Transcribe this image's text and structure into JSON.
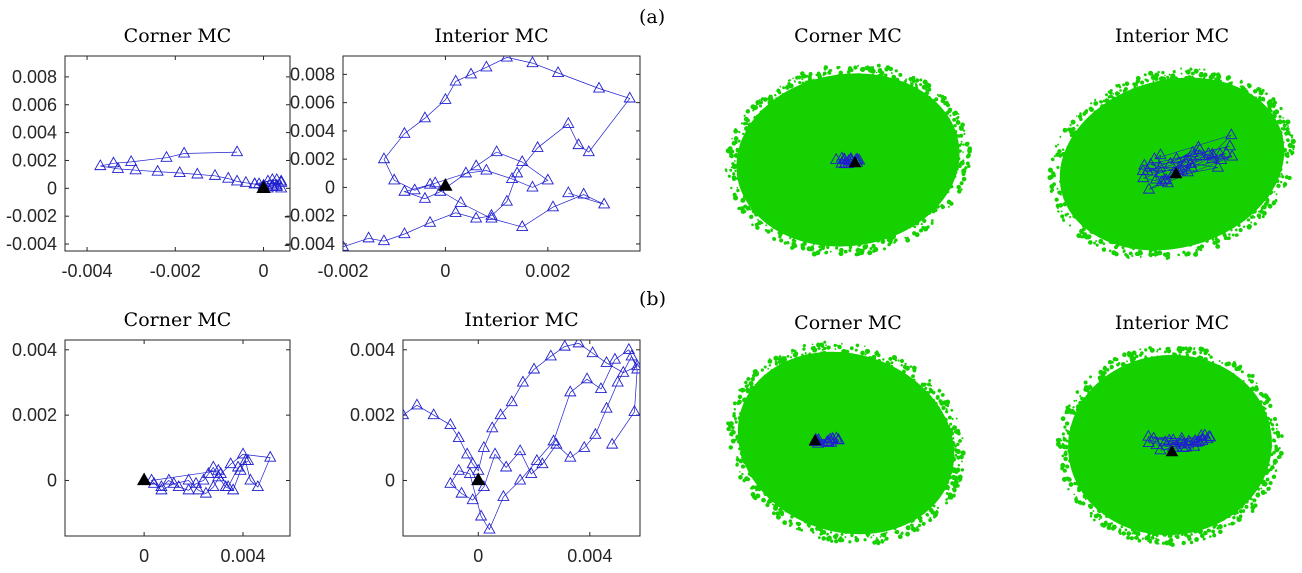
{
  "figure": {
    "panel_labels": [
      "(a)",
      "(b)"
    ],
    "cloud_titles": [
      "Corner MC",
      "Interior MC",
      "Corner MC",
      "Interior MC"
    ]
  },
  "colors": {
    "marker": "#1f1fd0",
    "final_marker": "#000000",
    "cloud": "#15d100",
    "axis": "#262626"
  },
  "chart_data": [
    {
      "type": "line",
      "title": "Corner MC",
      "row": "(a)",
      "xlabel": "",
      "ylabel": "",
      "xlim": [
        -0.0045,
        0.0006
      ],
      "ylim": [
        -0.0045,
        0.0095
      ],
      "xticks": [
        -0.004,
        -0.002,
        0
      ],
      "xtick_labels": [
        "-0.004",
        "-0.002",
        "0"
      ],
      "yticks": [
        -0.004,
        -0.002,
        0,
        0.002,
        0.004,
        0.006,
        0.008
      ],
      "ytick_labels": [
        "-0.004",
        "-0.002",
        "0",
        "0.002",
        "0.004",
        "0.006",
        "0.008"
      ],
      "series": [
        {
          "marker": "open-triangle",
          "x": [
            -0.0006,
            -0.0018,
            -0.0022,
            -0.003,
            -0.0034,
            -0.0037,
            -0.0033,
            -0.0029,
            -0.0024,
            -0.0019,
            -0.0015,
            -0.0011,
            -0.0008,
            -0.0006,
            -0.0004,
            -0.0002,
            0.0,
            0.0002,
            0.0004,
            0.0003,
            0.0001,
            -0.0001,
            0.0002,
            0.0004,
            0.0003,
            0.0001,
            -0.0002,
            0.0002,
            0.0004,
            0.0003
          ],
          "y": [
            0.0026,
            0.0025,
            0.0022,
            0.0019,
            0.0018,
            0.0016,
            0.0014,
            0.0013,
            0.0012,
            0.0011,
            0.001,
            0.0009,
            0.0007,
            0.0005,
            0.0004,
            0.0003,
            0.0002,
            0.0001,
            0.0,
            0.0006,
            0.0005,
            0.0003,
            0.0002,
            0.0004,
            0.0001,
            0.0,
            0.0003,
            0.0006,
            0.0005,
            0.0002
          ],
          "final": {
            "x": 0.0,
            "y": 0.0
          }
        }
      ]
    },
    {
      "type": "line",
      "title": "Interior MC",
      "row": "(a)",
      "xlabel": "",
      "ylabel": "",
      "xlim": [
        -0.002,
        0.0038
      ],
      "ylim": [
        -0.0045,
        0.0093
      ],
      "xticks": [
        -0.002,
        0,
        0.002
      ],
      "xtick_labels": [
        "-0.002",
        "0",
        "0.002"
      ],
      "yticks": [
        -0.004,
        -0.002,
        0,
        0.002,
        0.004,
        0.006,
        0.008
      ],
      "ytick_labels": [
        "-0.004",
        "-0.002",
        "0",
        "0.002",
        "0.004",
        "0.006",
        "0.008"
      ],
      "series": [
        {
          "marker": "open-triangle",
          "x": [
            -0.002,
            -0.0015,
            -0.0012,
            -0.0008,
            -0.0003,
            0.0002,
            0.0006,
            0.0009,
            0.0012,
            0.0014,
            0.0018,
            0.0024,
            0.0026,
            0.0028,
            0.0036,
            0.003,
            0.0022,
            0.0017,
            0.0012,
            0.0008,
            0.0005,
            0.0002,
            0.0,
            -0.0004,
            -0.0008,
            -0.0012,
            -0.001,
            -0.0006,
            -0.0002,
            0.0004,
            0.0008,
            0.0013,
            0.0017,
            0.002,
            0.0015,
            0.001,
            0.0006,
            -0.0001,
            -0.0004,
            -0.0008,
            -0.0003,
            0.0003,
            0.0009,
            0.0015,
            0.0021,
            0.0027,
            0.0031,
            0.0024
          ],
          "y": [
            -0.0042,
            -0.0036,
            -0.0038,
            -0.0033,
            -0.0025,
            -0.0018,
            -0.0022,
            -0.002,
            -0.001,
            0.001,
            0.0028,
            0.0045,
            0.003,
            0.0025,
            0.0063,
            0.007,
            0.0081,
            0.0088,
            0.0092,
            0.0085,
            0.008,
            0.0075,
            0.0062,
            0.0049,
            0.0038,
            0.002,
            0.0005,
            -0.0002,
            0.0003,
            0.001,
            0.0012,
            0.0006,
            0.0,
            0.0005,
            0.0018,
            0.0025,
            0.0015,
            -0.0003,
            -0.0008,
            -0.0003,
            0.0002,
            -0.0011,
            -0.0022,
            -0.0028,
            -0.0014,
            -0.0005,
            -0.0012,
            -0.0004
          ],
          "final": {
            "x": 0.0,
            "y": 0.0001
          }
        }
      ]
    },
    {
      "type": "line",
      "title": "Corner MC",
      "row": "(b)",
      "xlabel": "",
      "ylabel": "",
      "xlim": [
        -0.0032,
        0.0059
      ],
      "ylim": [
        -0.0017,
        0.0043
      ],
      "xticks": [
        0,
        0.004
      ],
      "xtick_labels": [
        "0",
        "0.004"
      ],
      "yticks": [
        0,
        0.002,
        0.004
      ],
      "ytick_labels": [
        "0",
        "0.002",
        "0.004"
      ],
      "series": [
        {
          "marker": "open-triangle",
          "x": [
            0.0,
            0.0004,
            0.0007,
            0.001,
            0.0014,
            0.0018,
            0.0021,
            0.0024,
            0.0026,
            0.0028,
            0.003,
            0.0033,
            0.0036,
            0.0039,
            0.0041,
            0.0043,
            0.0046,
            0.0051,
            0.004,
            0.0035,
            0.0031,
            0.0028,
            0.0025,
            0.0022,
            0.0018,
            0.0012,
            0.0007,
            0.0003,
            0.003,
            0.0034,
            0.0038,
            0.0042
          ],
          "y": [
            0.0,
            -0.0001,
            -0.0002,
            0.0,
            -0.0002,
            -0.0003,
            -0.0001,
            0.0,
            0.0002,
            0.0004,
            0.0001,
            -0.0002,
            -0.0003,
            0.0003,
            0.0006,
            0.0,
            -0.0002,
            0.0007,
            0.0008,
            0.0005,
            0.0002,
            -0.0002,
            -0.0004,
            -0.0003,
            0.0,
            -0.0001,
            -0.0003,
            0.0,
            0.0003,
            -0.0002,
            0.0004,
            0.0006
          ],
          "final": {
            "x": 0.0,
            "y": 0.0
          }
        }
      ]
    },
    {
      "type": "line",
      "title": "Interior MC",
      "row": "(b)",
      "xlabel": "",
      "ylabel": "",
      "xlim": [
        -0.0027,
        0.0058
      ],
      "ylim": [
        -0.0017,
        0.0043
      ],
      "xticks": [
        0,
        0.004
      ],
      "xtick_labels": [
        "0",
        "0.004"
      ],
      "yticks": [
        0,
        0.002,
        0.004
      ],
      "ytick_labels": [
        "0",
        "0.002",
        "0.004"
      ],
      "series": [
        {
          "marker": "open-triangle",
          "x": [
            -0.0027,
            -0.0022,
            -0.0016,
            -0.001,
            -0.0007,
            -0.0004,
            -0.0002,
            0.0,
            0.0002,
            0.0005,
            0.0008,
            0.0012,
            0.0016,
            0.002,
            0.0026,
            0.0031,
            0.0036,
            0.0041,
            0.0046,
            0.0052,
            0.0057,
            0.0055,
            0.005,
            0.0046,
            0.0042,
            0.0038,
            0.0033,
            0.0028,
            0.0023,
            0.0019,
            0.0015,
            0.001,
            0.0006,
            0.0002,
            -0.0002,
            -0.0006,
            -0.001,
            -0.0007,
            -0.0003,
            0.0001,
            0.0004,
            0.0009,
            0.0015,
            0.0021,
            0.0027,
            0.0033,
            0.0039,
            0.0044,
            0.0049,
            0.0054,
            0.0057,
            0.0056,
            0.0048
          ],
          "y": [
            0.002,
            0.0023,
            0.002,
            0.0017,
            0.0013,
            0.0008,
            0.0005,
            0.0003,
            0.001,
            0.0016,
            0.002,
            0.0024,
            0.003,
            0.0034,
            0.0038,
            0.0041,
            0.0042,
            0.0039,
            0.0036,
            0.0033,
            0.0035,
            0.0038,
            0.003,
            0.0022,
            0.0014,
            0.001,
            0.0007,
            0.0011,
            0.0005,
            0.0002,
            0.0009,
            0.0004,
            0.0008,
            -0.0002,
            -0.0006,
            -0.0004,
            -0.0001,
            0.0003,
            0.0002,
            -0.0011,
            -0.0015,
            -0.0005,
            0.0,
            0.0006,
            0.0012,
            0.0027,
            0.0031,
            0.0028,
            0.0037,
            0.004,
            0.0034,
            0.0021,
            0.0011
          ],
          "final": {
            "x": 0.0,
            "y": 0.0
          }
        }
      ]
    }
  ],
  "clouds": [
    {
      "title": "Corner MC",
      "row": "(a)",
      "marker_cluster": "small"
    },
    {
      "title": "Interior MC",
      "row": "(a)",
      "marker_cluster": "spread"
    },
    {
      "title": "Corner MC",
      "row": "(b)",
      "marker_cluster": "small"
    },
    {
      "title": "Interior MC",
      "row": "(b)",
      "marker_cluster": "medium"
    }
  ]
}
